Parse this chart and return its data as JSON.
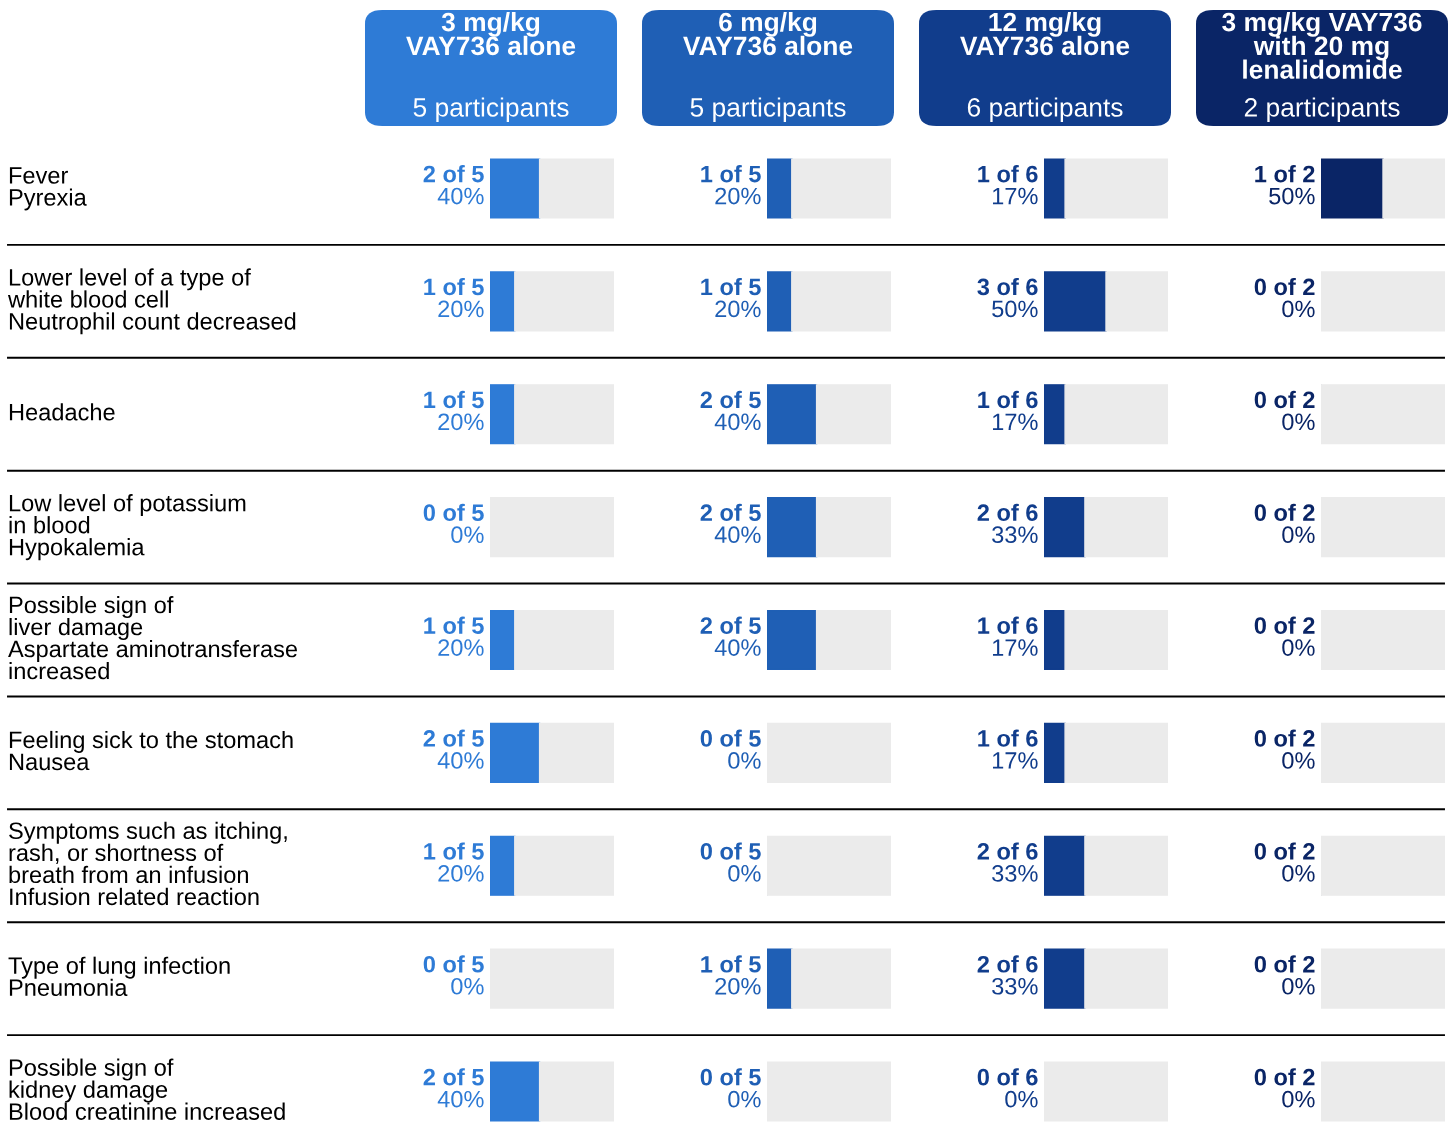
{
  "chart_data": [
    {
      "type": "bar",
      "orientation": "horizontal",
      "stacked": true,
      "title": "3 mg/kg\nVAY736 alone",
      "subtitle": "5 participants",
      "tick_labels": "y",
      "xlim": [
        0,
        100
      ],
      "categories": [
        "Fever\nPyrexia",
        "Lower level of a type of\nwhite blood cell\nNeutrophil count decreased",
        "Headache",
        "Low level of potassium\nin blood\nHypokalemia",
        "Possible sign of\nliver damage\nAspartate aminotransferase\nincreased",
        "Feeling sick to the stomach\nNausea",
        "Symptoms such as itching,\nrash, or shortness of\nbreath from an infusion\nInfusion related reaction",
        "Type of lung infection\nPneumonia",
        "Possible sign of\nkidney damage\nBlood creatinine increased"
      ],
      "series": [
        {
          "color": "#2e7bd6",
          "values": [
            40,
            20,
            20,
            0,
            20,
            40,
            20,
            0,
            40
          ],
          "value_labels": [
            "2 of 5\n40%",
            "1 of 5\n20%",
            "1 of 5\n20%",
            "0 of 5\n0%",
            "1 of 5\n20%",
            "2 of 5\n40%",
            "1 of 5\n20%",
            "0 of 5\n0%",
            "2 of 5\n40%"
          ]
        },
        {
          "color": "#ebebeb",
          "values": [
            60,
            80,
            80,
            100,
            80,
            60,
            80,
            100,
            60
          ]
        }
      ]
    },
    {
      "type": "bar",
      "orientation": "horizontal",
      "stacked": true,
      "title": "6 mg/kg\nVAY736 alone",
      "subtitle": "5 participants",
      "tick_labels": false,
      "xlim": [
        0,
        100
      ],
      "categories": [
        null,
        null,
        null,
        null,
        null,
        null,
        null,
        null,
        null
      ],
      "series": [
        {
          "color": "#1f5fb5",
          "values": [
            20,
            20,
            40,
            40,
            40,
            0,
            0,
            20,
            0
          ],
          "value_labels": [
            "1 of 5\n20%",
            "1 of 5\n20%",
            "2 of 5\n40%",
            "2 of 5\n40%",
            "2 of 5\n40%",
            "0 of 5\n0%",
            "0 of 5\n0%",
            "1 of 5\n20%",
            "0 of 5\n0%"
          ]
        },
        {
          "color": "#ebebeb",
          "values": [
            80,
            80,
            60,
            60,
            60,
            100,
            100,
            80,
            100
          ]
        }
      ]
    },
    {
      "type": "bar",
      "orientation": "horizontal",
      "stacked": true,
      "title": "12 mg/kg\nVAY736 alone",
      "subtitle": "6 participants",
      "tick_labels": false,
      "xlim": [
        0,
        100
      ],
      "categories": [
        null,
        null,
        null,
        null,
        null,
        null,
        null,
        null,
        null
      ],
      "series": [
        {
          "color": "#113d8c",
          "values": [
            17,
            50,
            17,
            33,
            17,
            17,
            33,
            33,
            0
          ],
          "value_labels": [
            "1 of 6\n17%",
            "3 of 6\n50%",
            "1 of 6\n17%",
            "2 of 6\n33%",
            "1 of 6\n17%",
            "1 of 6\n17%",
            "2 of 6\n33%",
            "2 of 6\n33%",
            "0 of 6\n0%"
          ]
        },
        {
          "color": "#ebebeb",
          "values": [
            83,
            50,
            83,
            67,
            83,
            83,
            67,
            67,
            100
          ]
        }
      ]
    },
    {
      "type": "bar",
      "orientation": "horizontal",
      "stacked": true,
      "title": "3 mg/kg VAY736\nwith 20 mg\nlenalidomide",
      "subtitle": "2 participants",
      "tick_labels": false,
      "xlim": [
        0,
        100
      ],
      "categories": [
        null,
        null,
        null,
        null,
        null,
        null,
        null,
        null,
        null
      ],
      "series": [
        {
          "color": "#0a2566",
          "values": [
            50,
            0,
            0,
            0,
            0,
            0,
            0,
            0,
            0
          ],
          "value_labels": [
            "1 of 2\n50%",
            "0 of 2\n0%",
            "0 of 2\n0%",
            "0 of 2\n0%",
            "0 of 2\n0%",
            "0 of 2\n0%",
            "0 of 2\n0%",
            "0 of 2\n0%",
            "0 of 2\n0%"
          ]
        },
        {
          "color": "#ebebeb",
          "values": [
            50,
            100,
            100,
            100,
            100,
            100,
            100,
            100,
            100
          ]
        }
      ]
    }
  ]
}
